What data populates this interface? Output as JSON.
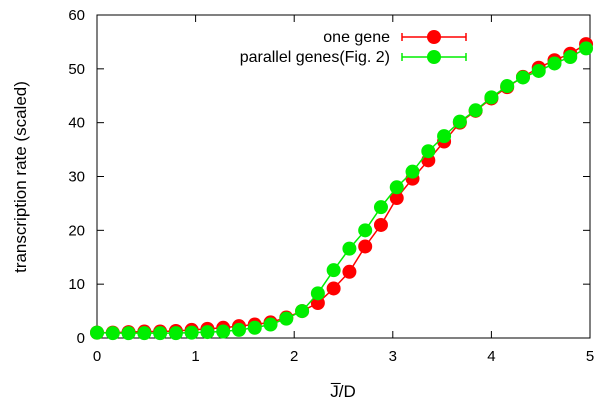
{
  "chart_data": {
    "type": "line",
    "xlabel": "J̅/D",
    "ylabel": "transcription rate (scaled)",
    "xlim": [
      0,
      5
    ],
    "ylim": [
      0,
      60
    ],
    "xticks": [
      0,
      1,
      2,
      3,
      4,
      5
    ],
    "yticks": [
      0,
      10,
      20,
      30,
      40,
      50,
      60
    ],
    "grid": false,
    "legend_position": "top-right",
    "x": [
      0,
      0.16,
      0.32,
      0.48,
      0.64,
      0.8,
      0.96,
      1.12,
      1.28,
      1.44,
      1.6,
      1.76,
      1.92,
      2.08,
      2.24,
      2.4,
      2.56,
      2.72,
      2.88,
      3.04,
      3.2,
      3.36,
      3.52,
      3.68,
      3.84,
      4.0,
      4.16,
      4.32,
      4.48,
      4.64,
      4.8,
      4.96
    ],
    "series": [
      {
        "name": "one gene",
        "color": "#ff0000",
        "values": [
          1.0,
          1.0,
          1.1,
          1.2,
          1.2,
          1.3,
          1.5,
          1.7,
          1.9,
          2.2,
          2.5,
          2.9,
          3.8,
          5.0,
          6.5,
          9.2,
          12.3,
          17.0,
          21.0,
          26.0,
          29.6,
          33.0,
          36.5,
          40.0,
          42.2,
          44.5,
          46.6,
          48.5,
          50.2,
          51.6,
          52.8,
          54.6
        ]
      },
      {
        "name": "parallel genes(Fig. 2)",
        "color": "#00ee00",
        "values": [
          1.0,
          0.9,
          0.9,
          0.9,
          0.9,
          0.9,
          1.0,
          1.1,
          1.2,
          1.5,
          1.9,
          2.5,
          3.6,
          5.0,
          8.3,
          12.6,
          16.6,
          20.0,
          24.3,
          28.0,
          30.9,
          34.7,
          37.5,
          40.2,
          42.3,
          44.7,
          46.8,
          48.4,
          49.6,
          51.0,
          52.2,
          53.8
        ]
      }
    ]
  }
}
